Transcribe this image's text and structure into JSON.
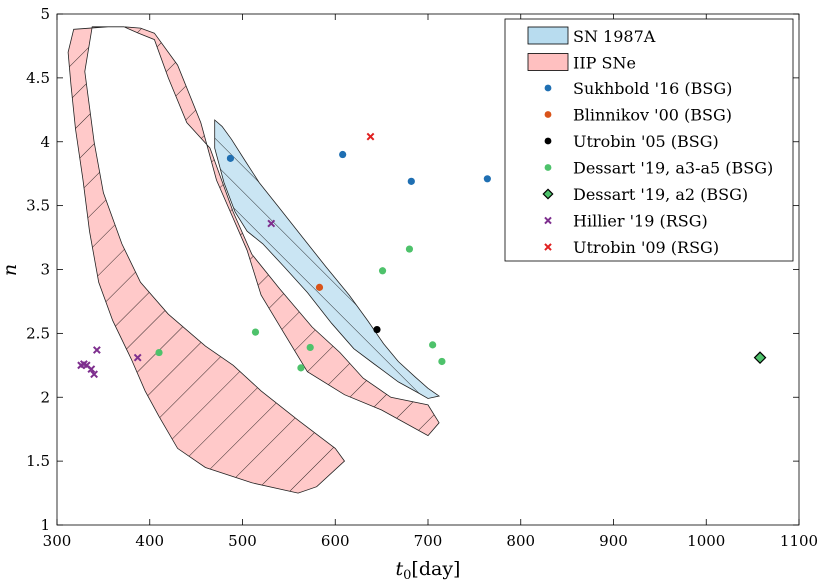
{
  "chart_data": {
    "type": "scatter",
    "xlabel_var": "t",
    "xlabel_sub": "0",
    "xlabel_unit": "[day]",
    "ylabel": "n",
    "xlim": [
      300,
      1100
    ],
    "ylim": [
      1,
      5
    ],
    "xticks": [
      "300",
      "400",
      "500",
      "600",
      "700",
      "800",
      "900",
      "1000",
      "1100"
    ],
    "yticks": [
      "1",
      "1.5",
      "2",
      "2.5",
      "3",
      "3.5",
      "4",
      "4.5",
      "5"
    ],
    "grid": false,
    "legend_position": "top-right",
    "regions": [
      {
        "name": "IIP SNe",
        "fill": "#ffc0c0",
        "opacity": 0.85,
        "hatch": "diag-down",
        "polygons": [
          [
            [
              318,
              4.88
            ],
            [
              355,
              4.9
            ],
            [
              372,
              4.9
            ],
            [
              388,
              4.85
            ],
            [
              405,
              4.8
            ],
            [
              420,
              4.5
            ],
            [
              440,
              4.15
            ],
            [
              465,
              3.95
            ],
            [
              490,
              3.45
            ],
            [
              510,
              3.12
            ],
            [
              540,
              2.85
            ],
            [
              575,
              2.55
            ],
            [
              605,
              2.35
            ],
            [
              630,
              2.15
            ],
            [
              660,
              2.0
            ],
            [
              700,
              1.94
            ],
            [
              712,
              1.8
            ],
            [
              700,
              1.7
            ],
            [
              650,
              1.9
            ],
            [
              610,
              2.02
            ],
            [
              570,
              2.2
            ],
            [
              545,
              2.5
            ],
            [
              520,
              2.8
            ],
            [
              505,
              3.15
            ],
            [
              490,
              3.4
            ],
            [
              472,
              3.7
            ],
            [
              455,
              4.15
            ],
            [
              430,
              4.6
            ],
            [
              405,
              4.85
            ],
            [
              390,
              4.89
            ],
            [
              372,
              4.9
            ],
            [
              355,
              4.9
            ],
            [
              338,
              4.9
            ],
            [
              330,
              4.55
            ],
            [
              340,
              4.0
            ],
            [
              350,
              3.6
            ],
            [
              370,
              3.2
            ],
            [
              390,
              2.9
            ],
            [
              420,
              2.65
            ],
            [
              460,
              2.4
            ],
            [
              490,
              2.25
            ],
            [
              520,
              2.05
            ],
            [
              560,
              1.82
            ],
            [
              600,
              1.6
            ],
            [
              610,
              1.5
            ],
            [
              580,
              1.3
            ],
            [
              560,
              1.25
            ],
            [
              510,
              1.33
            ],
            [
              460,
              1.45
            ],
            [
              430,
              1.6
            ],
            [
              410,
              1.85
            ],
            [
              395,
              2.05
            ],
            [
              380,
              2.3
            ],
            [
              360,
              2.6
            ],
            [
              345,
              2.9
            ],
            [
              335,
              3.3
            ],
            [
              328,
              3.7
            ],
            [
              320,
              4.1
            ],
            [
              315,
              4.45
            ],
            [
              312,
              4.7
            ]
          ]
        ]
      },
      {
        "name": "SN 1987A",
        "fill": "#b8dcef",
        "opacity": 0.75,
        "hatch": "diag-up",
        "polygons": [
          [
            [
              470,
              4.17
            ],
            [
              478,
              4.12
            ],
            [
              488,
              4.02
            ],
            [
              502,
              3.86
            ],
            [
              518,
              3.68
            ],
            [
              540,
              3.48
            ],
            [
              565,
              3.25
            ],
            [
              590,
              3.02
            ],
            [
              615,
              2.8
            ],
            [
              635,
              2.6
            ],
            [
              652,
              2.42
            ],
            [
              668,
              2.28
            ],
            [
              686,
              2.16
            ],
            [
              700,
              2.07
            ],
            [
              712,
              2.01
            ],
            [
              700,
              1.99
            ],
            [
              688,
              2.04
            ],
            [
              668,
              2.12
            ],
            [
              642,
              2.26
            ],
            [
              620,
              2.38
            ],
            [
              596,
              2.58
            ],
            [
              570,
              2.82
            ],
            [
              545,
              3.02
            ],
            [
              522,
              3.2
            ],
            [
              505,
              3.3
            ],
            [
              492,
              3.45
            ],
            [
              480,
              3.68
            ],
            [
              470,
              3.95
            ]
          ]
        ]
      }
    ],
    "series": [
      {
        "name": "Sukhbold '16 (BSG)",
        "color": "#1f6fb2",
        "marker": "circle",
        "points": [
          [
            487,
            3.87
          ],
          [
            608,
            3.9
          ],
          [
            682,
            3.69
          ],
          [
            764,
            3.71
          ]
        ]
      },
      {
        "name": "Blinnikov '00 (BSG)",
        "color": "#d9541a",
        "marker": "circle",
        "points": [
          [
            583,
            2.86
          ]
        ]
      },
      {
        "name": "Utrobin '05 (BSG)",
        "color": "#000000",
        "marker": "circle",
        "points": [
          [
            645,
            2.53
          ]
        ]
      },
      {
        "name": "Dessart '19, a3-a5 (BSG)",
        "color": "#4ec26b",
        "marker": "circle",
        "points": [
          [
            410,
            2.35
          ],
          [
            514,
            2.51
          ],
          [
            563,
            2.23
          ],
          [
            573,
            2.39
          ],
          [
            651,
            2.99
          ],
          [
            680,
            3.16
          ],
          [
            705,
            2.41
          ],
          [
            715,
            2.28
          ]
        ]
      },
      {
        "name": "Dessart '19, a2 (BSG)",
        "color": "#4ec26b",
        "marker": "diamond",
        "points": [
          [
            1058,
            2.31
          ]
        ]
      },
      {
        "name": "Hillier '19 (RSG)",
        "color": "#7e2f8e",
        "marker": "x",
        "points": [
          [
            326,
            2.25
          ],
          [
            329,
            2.26
          ],
          [
            332,
            2.25
          ],
          [
            337,
            2.22
          ],
          [
            340,
            2.18
          ],
          [
            343,
            2.37
          ],
          [
            387,
            2.31
          ],
          [
            531,
            3.36
          ]
        ]
      },
      {
        "name": "Utrobin '09 (RSG)",
        "color": "#e02020",
        "marker": "x",
        "points": [
          [
            638,
            4.04
          ]
        ]
      }
    ]
  }
}
